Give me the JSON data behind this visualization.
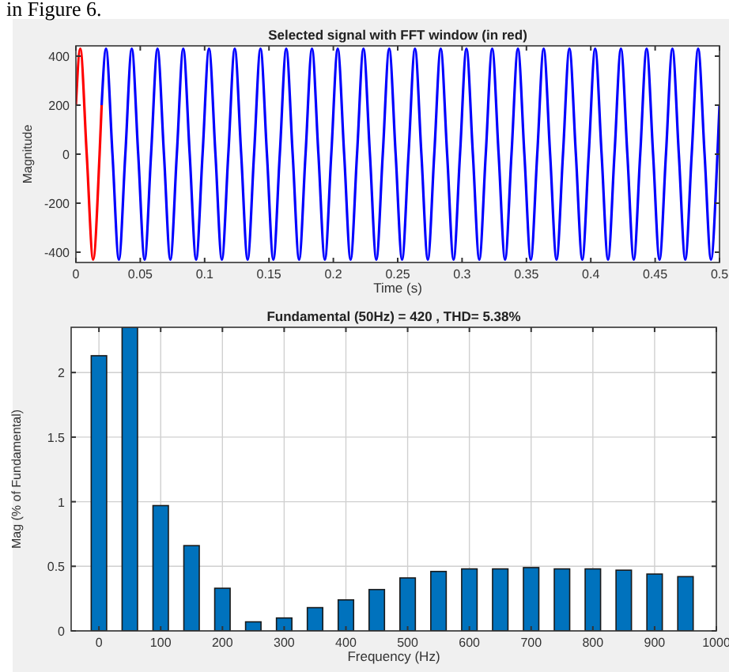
{
  "chart_data": [
    {
      "type": "line",
      "title": "Selected signal with FFT window (in red)",
      "xlabel": "Time (s)",
      "ylabel": "Magnitude",
      "annotations": [
        "in Figure 6."
      ],
      "xlim": [
        0,
        0.5
      ],
      "ylim": [
        -442,
        442
      ],
      "xticks": [
        0,
        0.05,
        0.1,
        0.15,
        0.2,
        0.25,
        0.3,
        0.35,
        0.4,
        0.45,
        0.5
      ],
      "yticks": [
        -400,
        -200,
        0,
        200,
        400
      ],
      "grid": false,
      "series": [
        {
          "color": "#0000ff",
          "x": [
            0.02,
            0.0234,
            0.0284,
            0.0334,
            0.0384,
            0.0434,
            0.0484,
            0.0534,
            0.0584,
            0.0634,
            0.0684,
            0.0734,
            0.0784,
            0.0834,
            0.0884,
            0.0934,
            0.0984,
            0.1034,
            0.1084,
            0.1134,
            0.1184,
            0.1234,
            0.1284,
            0.1334,
            0.1384,
            0.1434,
            0.1484,
            0.1534,
            0.1584,
            0.1634,
            0.1684,
            0.1734,
            0.1784,
            0.1834,
            0.1884,
            0.1934,
            0.1984,
            0.2034,
            0.2084,
            0.2134,
            0.2184,
            0.2234,
            0.2284,
            0.2334,
            0.2384,
            0.2434,
            0.2484,
            0.2534,
            0.2584,
            0.2634,
            0.2684,
            0.2734,
            0.2784,
            0.2834,
            0.2884,
            0.2934,
            0.2984,
            0.3034,
            0.3084,
            0.3134,
            0.3184,
            0.3234,
            0.3284,
            0.3334,
            0.3384,
            0.3434,
            0.3484,
            0.3534,
            0.3584,
            0.3634,
            0.3684,
            0.3734,
            0.3784,
            0.3834,
            0.3884,
            0.3934,
            0.3984,
            0.4034,
            0.4084,
            0.4134,
            0.4184,
            0.4234,
            0.4284,
            0.4334,
            0.4384,
            0.4434,
            0.4484,
            0.4534,
            0.4584,
            0.4634,
            0.4684,
            0.4734,
            0.4784,
            0.4834,
            0.4884,
            0.4934,
            0.4984,
            0.5
          ],
          "values": [
            200,
            430,
            0,
            -430,
            0,
            430,
            0,
            -430,
            0,
            430,
            0,
            -430,
            0,
            430,
            0,
            -430,
            0,
            430,
            0,
            -430,
            0,
            430,
            0,
            -430,
            0,
            430,
            0,
            -430,
            0,
            430,
            0,
            -430,
            0,
            430,
            0,
            -430,
            0,
            430,
            0,
            -430,
            0,
            430,
            0,
            -430,
            0,
            430,
            0,
            -430,
            0,
            430,
            0,
            -430,
            0,
            430,
            0,
            -430,
            0,
            430,
            0,
            -430,
            0,
            430,
            0,
            -430,
            0,
            430,
            0,
            -430,
            0,
            430,
            0,
            -430,
            0,
            430,
            0,
            -430,
            0,
            430,
            0,
            -430,
            0,
            430,
            0,
            -430,
            0,
            430,
            0,
            -430,
            0,
            430,
            0,
            -430,
            0,
            430,
            0,
            -430,
            0,
            200
          ]
        },
        {
          "color": "#ff0000",
          "x": [
            0,
            0.0034,
            0.0084,
            0.0134,
            0.0184,
            0.02
          ],
          "values": [
            200,
            430,
            0,
            -430,
            0,
            200
          ]
        }
      ]
    },
    {
      "type": "bar",
      "title": "Fundamental (50Hz) = 420 , THD= 5.38%",
      "xlabel": "Frequency (Hz)",
      "ylabel": "Mag (% of Fundamental)",
      "xlim": [
        -45,
        1000
      ],
      "ylim": [
        0,
        2.35
      ],
      "xticks": [
        0,
        100,
        200,
        300,
        400,
        500,
        600,
        700,
        800,
        900,
        1000
      ],
      "yticks": [
        0,
        0.5,
        1,
        1.5,
        2
      ],
      "grid": true,
      "x": [
        0,
        50,
        100,
        150,
        200,
        250,
        300,
        350,
        400,
        450,
        500,
        550,
        600,
        650,
        700,
        750,
        800,
        850,
        900,
        950
      ],
      "series": [
        {
          "color": "#0072bd",
          "values": [
            2.13,
            2.35,
            0.97,
            0.66,
            0.33,
            0.07,
            0.1,
            0.18,
            0.24,
            0.32,
            0.41,
            0.46,
            0.48,
            0.48,
            0.49,
            0.48,
            0.48,
            0.47,
            0.44,
            0.42
          ]
        }
      ]
    }
  ]
}
